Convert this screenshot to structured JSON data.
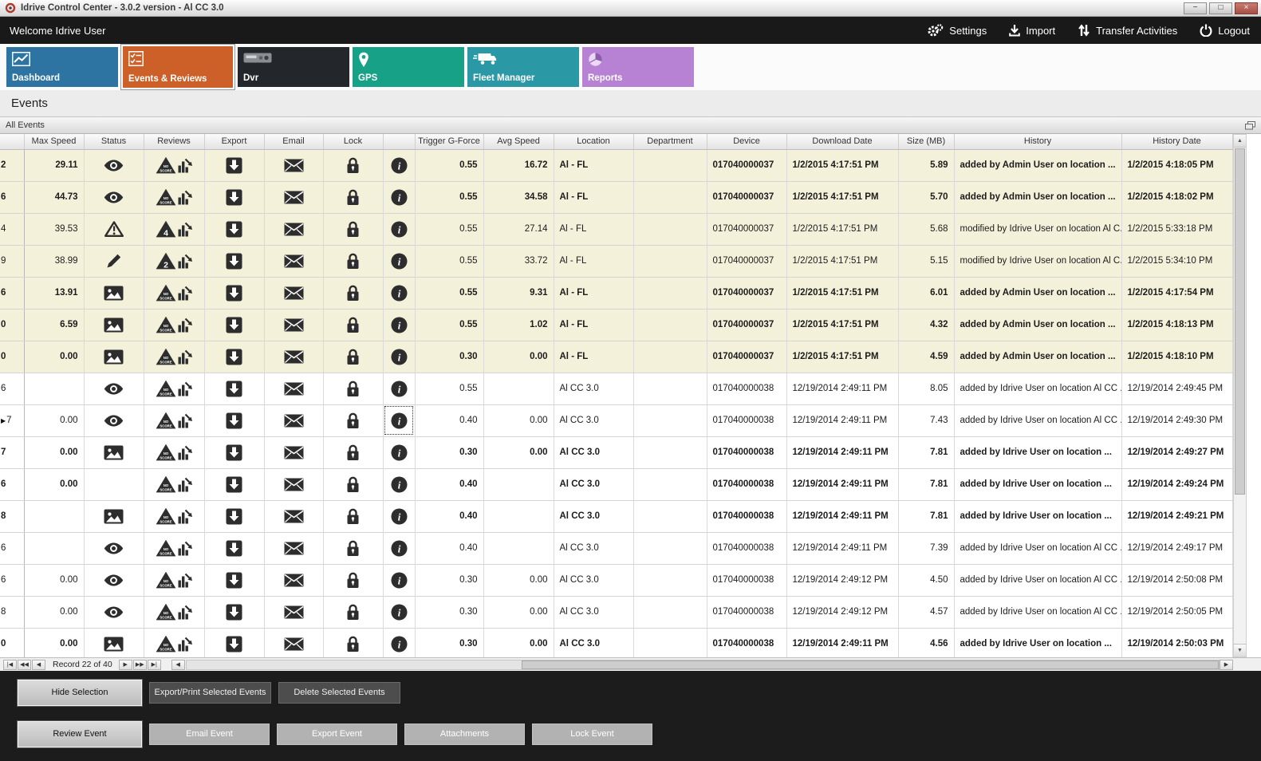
{
  "window": {
    "title": "Idrive Control Center - 3.0.2 version - Al CC 3.0",
    "controls": {
      "minimize": "−",
      "maximize": "□",
      "close": "×"
    }
  },
  "topbar": {
    "welcome": "Welcome Idrive User",
    "actions": [
      {
        "label": "Settings",
        "icon": "gear-icon"
      },
      {
        "label": "Import",
        "icon": "import-icon"
      },
      {
        "label": "Transfer Activities",
        "icon": "transfer-arrows-icon"
      },
      {
        "label": "Logout",
        "icon": "power-icon"
      }
    ]
  },
  "tabs": [
    {
      "label": "Dashboard",
      "color": "#2d74a3",
      "icon": "line-chart-icon",
      "active": false
    },
    {
      "label": "Events & Reviews",
      "color": "#cd5f28",
      "icon": "checklist-icon",
      "active": true
    },
    {
      "label": "Dvr",
      "color": "#23262b",
      "icon": "dvr-device-icon",
      "active": false
    },
    {
      "label": "GPS",
      "color": "#17a287",
      "icon": "map-pin-icon",
      "active": false
    },
    {
      "label": "Fleet Manager",
      "color": "#2b98a5",
      "icon": "truck-icon",
      "active": false
    },
    {
      "label": "Reports",
      "color": "#b782d4",
      "icon": "pie-chart-icon",
      "active": false
    }
  ],
  "page_title": "Events",
  "panel_title": "All Events",
  "colors": {
    "row_highlight": "#f4f1db",
    "icon_dark": "#2d2d2d"
  },
  "grid": {
    "columns": [
      "",
      "Max Speed",
      "Status",
      "Reviews",
      "Export",
      "Email",
      "Lock",
      "",
      "Trigger G-Force",
      "Avg Speed",
      "Location",
      "Department",
      "Device",
      "Download Date",
      "Size (MB)",
      "History",
      "History Date"
    ],
    "rows": [
      {
        "edge": "2",
        "max": "29.11",
        "status": "eye",
        "review": "NO SCORE",
        "trigger": "0.55",
        "avg": "16.72",
        "location": "Al - FL",
        "department": "",
        "device": "017040000037",
        "download": "1/2/2015 4:17:51 PM",
        "size": "5.89",
        "history": "added by Admin User on location ...",
        "history_date": "1/2/2015 4:18:05 PM",
        "bold": true,
        "highlight": true,
        "current": false
      },
      {
        "edge": "6",
        "max": "44.73",
        "status": "eye",
        "review": "NO SCORE",
        "trigger": "0.55",
        "avg": "34.58",
        "location": "Al - FL",
        "department": "",
        "device": "017040000037",
        "download": "1/2/2015 4:17:51 PM",
        "size": "5.70",
        "history": "added by Admin User on location ...",
        "history_date": "1/2/2015 4:18:02 PM",
        "bold": true,
        "highlight": true,
        "current": false
      },
      {
        "edge": "4",
        "max": "39.53",
        "status": "warning",
        "review": "4",
        "trigger": "0.55",
        "avg": "27.14",
        "location": "Al - FL",
        "department": "",
        "device": "017040000037",
        "download": "1/2/2015 4:17:51 PM",
        "size": "5.68",
        "history": "modified by Idrive User on location Al C...",
        "history_date": "1/2/2015 5:33:18 PM",
        "bold": false,
        "highlight": true,
        "current": false
      },
      {
        "edge": "9",
        "max": "38.99",
        "status": "pencil",
        "review": "2",
        "trigger": "0.55",
        "avg": "33.72",
        "location": "Al - FL",
        "department": "",
        "device": "017040000037",
        "download": "1/2/2015 4:17:51 PM",
        "size": "5.15",
        "history": "modified by Idrive User on location Al C...",
        "history_date": "1/2/2015 5:34:10 PM",
        "bold": false,
        "highlight": true,
        "current": false
      },
      {
        "edge": "6",
        "max": "13.91",
        "status": "image",
        "review": "NO SCORE",
        "trigger": "0.55",
        "avg": "9.31",
        "location": "Al - FL",
        "department": "",
        "device": "017040000037",
        "download": "1/2/2015 4:17:51 PM",
        "size": "6.01",
        "history": "added by Admin User on location ...",
        "history_date": "1/2/2015 4:17:54 PM",
        "bold": true,
        "highlight": true,
        "current": false
      },
      {
        "edge": "0",
        "max": "6.59",
        "status": "image",
        "review": "NO SCORE",
        "trigger": "0.55",
        "avg": "1.02",
        "location": "Al - FL",
        "department": "",
        "device": "017040000037",
        "download": "1/2/2015 4:17:51 PM",
        "size": "4.32",
        "history": "added by Admin User on location ...",
        "history_date": "1/2/2015 4:18:13 PM",
        "bold": true,
        "highlight": true,
        "current": false
      },
      {
        "edge": "0",
        "max": "0.00",
        "status": "image",
        "review": "NO SCORE",
        "trigger": "0.30",
        "avg": "0.00",
        "location": "Al - FL",
        "department": "",
        "device": "017040000037",
        "download": "1/2/2015 4:17:51 PM",
        "size": "4.59",
        "history": "added by Admin User on location ...",
        "history_date": "1/2/2015 4:18:10 PM",
        "bold": true,
        "highlight": true,
        "current": false
      },
      {
        "edge": "6",
        "max": "",
        "status": "eye",
        "review": "NO SCORE",
        "trigger": "0.55",
        "avg": "",
        "location": "Al CC 3.0",
        "department": "",
        "device": "017040000038",
        "download": "12/19/2014 2:49:11 PM",
        "size": "8.05",
        "history": "added by Idrive User on location Al CC ...",
        "history_date": "12/19/2014 2:49:45 PM",
        "bold": false,
        "highlight": false,
        "current": false
      },
      {
        "edge": "7",
        "max": "0.00",
        "status": "eye",
        "review": "NO SCORE",
        "trigger": "0.40",
        "avg": "0.00",
        "location": "Al CC 3.0",
        "department": "",
        "device": "017040000038",
        "download": "12/19/2014 2:49:11 PM",
        "size": "7.43",
        "history": "added by Idrive User on location Al CC ...",
        "history_date": "12/19/2014 2:49:30 PM",
        "bold": false,
        "highlight": false,
        "current": true
      },
      {
        "edge": "7",
        "max": "0.00",
        "status": "image",
        "review": "NO SCORE",
        "trigger": "0.30",
        "avg": "0.00",
        "location": "Al CC 3.0",
        "department": "",
        "device": "017040000038",
        "download": "12/19/2014 2:49:11 PM",
        "size": "7.81",
        "history": "added by Idrive User on location ...",
        "history_date": "12/19/2014 2:49:27 PM",
        "bold": true,
        "highlight": false,
        "current": false
      },
      {
        "edge": "6",
        "max": "0.00",
        "status": "",
        "review": "NO SCORE",
        "trigger": "0.40",
        "avg": "",
        "location": "Al CC 3.0",
        "department": "",
        "device": "017040000038",
        "download": "12/19/2014 2:49:11 PM",
        "size": "7.81",
        "history": "added by Idrive User on location ...",
        "history_date": "12/19/2014 2:49:24 PM",
        "bold": true,
        "highlight": false,
        "current": false
      },
      {
        "edge": "8",
        "max": "",
        "status": "image",
        "review": "NO SCORE",
        "trigger": "0.40",
        "avg": "",
        "location": "Al CC 3.0",
        "department": "",
        "device": "017040000038",
        "download": "12/19/2014 2:49:11 PM",
        "size": "7.81",
        "history": "added by Idrive User on location ...",
        "history_date": "12/19/2014 2:49:21 PM",
        "bold": true,
        "highlight": false,
        "current": false
      },
      {
        "edge": "6",
        "max": "",
        "status": "eye",
        "review": "NO SCORE",
        "trigger": "0.40",
        "avg": "",
        "location": "Al CC 3.0",
        "department": "",
        "device": "017040000038",
        "download": "12/19/2014 2:49:11 PM",
        "size": "7.39",
        "history": "added by Idrive User on location Al CC ...",
        "history_date": "12/19/2014 2:49:17 PM",
        "bold": false,
        "highlight": false,
        "current": false
      },
      {
        "edge": "6",
        "max": "0.00",
        "status": "eye",
        "review": "NO SCORE",
        "trigger": "0.30",
        "avg": "0.00",
        "location": "Al CC 3.0",
        "department": "",
        "device": "017040000038",
        "download": "12/19/2014 2:49:12 PM",
        "size": "4.50",
        "history": "added by Idrive User on location Al CC ...",
        "history_date": "12/19/2014 2:50:08 PM",
        "bold": false,
        "highlight": false,
        "current": false
      },
      {
        "edge": "8",
        "max": "0.00",
        "status": "eye",
        "review": "NO SCORE",
        "trigger": "0.30",
        "avg": "0.00",
        "location": "Al CC 3.0",
        "department": "",
        "device": "017040000038",
        "download": "12/19/2014 2:49:12 PM",
        "size": "4.57",
        "history": "added by Idrive User on location Al CC ...",
        "history_date": "12/19/2014 2:50:05 PM",
        "bold": false,
        "highlight": false,
        "current": false
      },
      {
        "edge": "0",
        "max": "0.00",
        "status": "image",
        "review": "NO SCORE",
        "trigger": "0.30",
        "avg": "0.00",
        "location": "Al CC 3.0",
        "department": "",
        "device": "017040000038",
        "download": "12/19/2014 2:49:11 PM",
        "size": "4.56",
        "history": "added by Idrive User on location ...",
        "history_date": "12/19/2014 2:50:03 PM",
        "bold": true,
        "highlight": false,
        "current": false
      }
    ]
  },
  "pager": {
    "record_label": "Record 22 of 40",
    "nav_left": [
      "|◀",
      "◀◀",
      "◀"
    ],
    "nav_right": [
      "▶",
      "▶▶",
      "▶|"
    ],
    "scroll_left": "◀",
    "scroll_right": "▶",
    "scroll_up": "▲",
    "scroll_down": "▼"
  },
  "toolbars": {
    "selection_row": [
      {
        "label": "Hide Selection",
        "focused": true
      },
      {
        "label": "Export/Print Selected Events",
        "focused": false
      },
      {
        "label": "Delete Selected  Events",
        "focused": false
      }
    ],
    "event_row": [
      {
        "label": "Review Event",
        "focused": true
      },
      {
        "label": "Email Event",
        "focused": false
      },
      {
        "label": "Export Event",
        "focused": false
      },
      {
        "label": "Attachments",
        "focused": false
      },
      {
        "label": "Lock Event",
        "focused": false
      }
    ]
  }
}
